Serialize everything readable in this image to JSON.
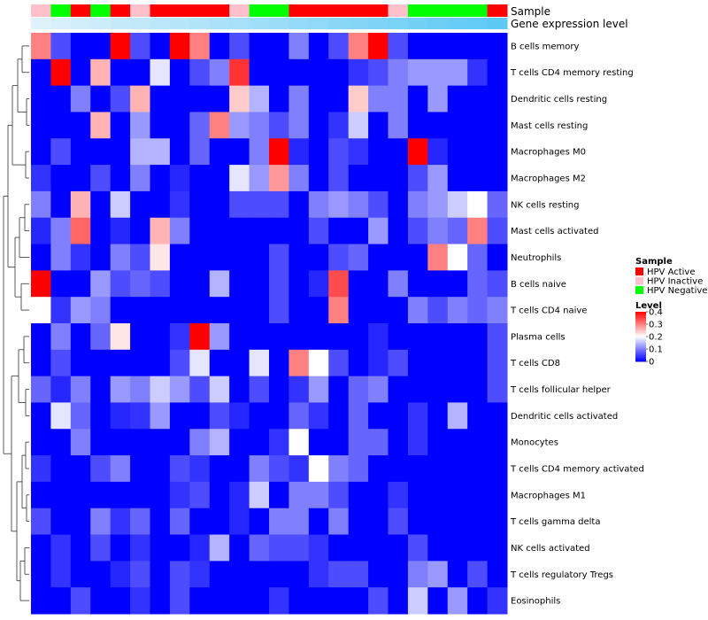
{
  "chart_data": {
    "type": "heatmap",
    "title": "",
    "annotation_labels": {
      "sample": "Sample",
      "gene_expression": "Gene expression level"
    },
    "row_labels": [
      "B cells memory",
      "T cells CD4 memory resting",
      "Dendritic cells resting",
      "Mast cells resting",
      "Macrophages M0",
      "Macrophages M2",
      "NK cells resting",
      "Mast cells activated",
      "Neutrophils",
      "B cells naive",
      "T cells CD4 naive",
      "Plasma cells",
      "T cells CD8",
      "T cells follicular helper",
      "Dendritic cells activated",
      "Monocytes",
      "T cells CD4 memory activated",
      "Macrophages M1",
      "T cells gamma delta",
      "NK cells activated",
      "T cells regulatory  Tregs",
      "Eosinophils"
    ],
    "sample_annotation": [
      "HPV Inactive",
      "HPV Negative",
      "HPV Active",
      "HPV Negative",
      "HPV Active",
      "HPV Inactive",
      "HPV Active",
      "HPV Active",
      "HPV Active",
      "HPV Active",
      "HPV Inactive",
      "HPV Negative",
      "HPV Negative",
      "HPV Active",
      "HPV Active",
      "HPV Active",
      "HPV Active",
      "HPV Active",
      "HPV Inactive",
      "HPV Negative",
      "HPV Negative",
      "HPV Negative",
      "HPV Negative",
      "HPV Active"
    ],
    "expression_annotation": [
      0.05,
      0.1,
      0.14,
      0.18,
      0.22,
      0.26,
      0.3,
      0.34,
      0.38,
      0.42,
      0.46,
      0.5,
      0.54,
      0.58,
      0.62,
      0.66,
      0.7,
      0.74,
      0.78,
      0.82,
      0.86,
      0.9,
      0.94,
      0.98
    ],
    "values": [
      [
        0.3,
        0.06,
        0.0,
        0.0,
        0.4,
        0.06,
        0.0,
        0.4,
        0.3,
        0.0,
        0.06,
        0.0,
        0.0,
        0.1,
        0.0,
        0.06,
        0.3,
        0.4,
        0.06,
        0.0,
        0.0,
        0.0,
        0.0,
        0.0
      ],
      [
        0.0,
        0.4,
        0.0,
        0.26,
        0.0,
        0.0,
        0.18,
        0.0,
        0.06,
        0.1,
        0.36,
        0.0,
        0.0,
        0.0,
        0.0,
        0.0,
        0.04,
        0.06,
        0.1,
        0.12,
        0.12,
        0.12,
        0.04,
        0.0
      ],
      [
        0.0,
        0.0,
        0.1,
        0.0,
        0.06,
        0.26,
        0.0,
        0.0,
        0.0,
        0.0,
        0.24,
        0.14,
        0.0,
        0.1,
        0.0,
        0.0,
        0.24,
        0.1,
        0.1,
        0.0,
        0.12,
        0.0,
        0.0,
        0.0
      ],
      [
        0.0,
        0.0,
        0.0,
        0.26,
        0.0,
        0.12,
        0.0,
        0.0,
        0.08,
        0.3,
        0.12,
        0.1,
        0.06,
        0.1,
        0.0,
        0.04,
        0.16,
        0.0,
        0.1,
        0.0,
        0.0,
        0.0,
        0.0,
        0.0
      ],
      [
        0.0,
        0.06,
        0.0,
        0.0,
        0.0,
        0.14,
        0.14,
        0.0,
        0.08,
        0.0,
        0.0,
        0.1,
        0.4,
        0.03,
        0.0,
        0.06,
        0.04,
        0.0,
        0.0,
        0.4,
        0.03,
        0.0,
        0.0,
        0.0
      ],
      [
        0.04,
        0.0,
        0.0,
        0.06,
        0.0,
        0.1,
        0.0,
        0.03,
        0.0,
        0.0,
        0.18,
        0.12,
        0.28,
        0.1,
        0.0,
        0.06,
        0.0,
        0.0,
        0.0,
        0.06,
        0.12,
        0.0,
        0.0,
        0.0
      ],
      [
        0.1,
        0.0,
        0.26,
        0.0,
        0.16,
        0.0,
        0.0,
        0.04,
        0.0,
        0.0,
        0.06,
        0.06,
        0.06,
        0.0,
        0.1,
        0.12,
        0.1,
        0.06,
        0.0,
        0.1,
        0.12,
        0.16,
        0.2,
        0.08
      ],
      [
        0.03,
        0.1,
        0.32,
        0.0,
        0.03,
        0.0,
        0.26,
        0.1,
        0.0,
        0.0,
        0.0,
        0.0,
        0.0,
        0.0,
        0.06,
        0.0,
        0.0,
        0.12,
        0.0,
        0.06,
        0.1,
        0.08,
        0.3,
        0.06
      ],
      [
        0.0,
        0.1,
        0.04,
        0.0,
        0.1,
        0.06,
        0.22,
        0.0,
        0.0,
        0.0,
        0.0,
        0.0,
        0.06,
        0.0,
        0.0,
        0.06,
        0.08,
        0.0,
        0.0,
        0.0,
        0.3,
        0.2,
        0.08,
        0.0
      ],
      [
        0.4,
        0.0,
        0.0,
        0.12,
        0.06,
        0.08,
        0.06,
        0.0,
        0.0,
        0.14,
        0.0,
        0.0,
        0.06,
        0.0,
        0.03,
        0.34,
        0.0,
        0.0,
        0.1,
        0.0,
        0.0,
        0.0,
        0.08,
        0.06
      ],
      [
        0.2,
        0.04,
        0.12,
        0.1,
        0.0,
        0.0,
        0.0,
        0.0,
        0.0,
        0.0,
        0.0,
        0.0,
        0.06,
        0.0,
        0.0,
        0.3,
        0.0,
        0.0,
        0.0,
        0.1,
        0.06,
        0.1,
        0.08,
        0.1
      ],
      [
        0.0,
        0.1,
        0.0,
        0.08,
        0.22,
        0.0,
        0.0,
        0.04,
        0.4,
        0.12,
        0.0,
        0.0,
        0.0,
        0.0,
        0.0,
        0.0,
        0.0,
        0.03,
        0.0,
        0.0,
        0.0,
        0.0,
        0.0,
        0.06
      ],
      [
        0.0,
        0.06,
        0.0,
        0.0,
        0.0,
        0.0,
        0.0,
        0.06,
        0.18,
        0.0,
        0.0,
        0.18,
        0.0,
        0.3,
        0.2,
        0.06,
        0.0,
        0.03,
        0.06,
        0.0,
        0.0,
        0.0,
        0.0,
        0.06
      ],
      [
        0.08,
        0.03,
        0.1,
        0.0,
        0.12,
        0.1,
        0.16,
        0.12,
        0.06,
        0.16,
        0.0,
        0.06,
        0.0,
        0.04,
        0.12,
        0.0,
        0.08,
        0.1,
        0.0,
        0.0,
        0.0,
        0.0,
        0.0,
        0.06
      ],
      [
        0.0,
        0.18,
        0.08,
        0.0,
        0.03,
        0.04,
        0.12,
        0.0,
        0.0,
        0.06,
        0.03,
        0.0,
        0.0,
        0.08,
        0.04,
        0.0,
        0.08,
        0.0,
        0.0,
        0.04,
        0.0,
        0.14,
        0.0,
        0.0
      ],
      [
        0.0,
        0.0,
        0.1,
        0.0,
        0.0,
        0.0,
        0.0,
        0.0,
        0.1,
        0.14,
        0.0,
        0.0,
        0.04,
        0.2,
        0.0,
        0.0,
        0.08,
        0.08,
        0.0,
        0.04,
        0.0,
        0.0,
        0.0,
        0.0
      ],
      [
        0.04,
        0.0,
        0.0,
        0.06,
        0.1,
        0.0,
        0.0,
        0.06,
        0.04,
        0.0,
        0.0,
        0.1,
        0.06,
        0.04,
        0.2,
        0.1,
        0.08,
        0.0,
        0.0,
        0.0,
        0.0,
        0.0,
        0.0,
        0.0
      ],
      [
        0.0,
        0.0,
        0.0,
        0.0,
        0.0,
        0.0,
        0.0,
        0.04,
        0.06,
        0.0,
        0.03,
        0.16,
        0.0,
        0.1,
        0.1,
        0.06,
        0.0,
        0.0,
        0.04,
        0.0,
        0.0,
        0.0,
        0.0,
        0.0
      ],
      [
        0.06,
        0.0,
        0.0,
        0.1,
        0.04,
        0.08,
        0.0,
        0.08,
        0.0,
        0.0,
        0.03,
        0.0,
        0.1,
        0.1,
        0.0,
        0.1,
        0.0,
        0.0,
        0.06,
        0.0,
        0.0,
        0.0,
        0.0,
        0.0
      ],
      [
        0.0,
        0.04,
        0.0,
        0.06,
        0.0,
        0.04,
        0.0,
        0.0,
        0.03,
        0.14,
        0.0,
        0.08,
        0.06,
        0.06,
        0.04,
        0.0,
        0.0,
        0.0,
        0.0,
        0.06,
        0.0,
        0.0,
        0.0,
        0.0
      ],
      [
        0.0,
        0.04,
        0.0,
        0.0,
        0.03,
        0.06,
        0.0,
        0.06,
        0.04,
        0.0,
        0.0,
        0.0,
        0.0,
        0.0,
        0.04,
        0.06,
        0.06,
        0.0,
        0.0,
        0.1,
        0.12,
        0.0,
        0.06,
        0.0
      ],
      [
        0.0,
        0.0,
        0.06,
        0.0,
        0.0,
        0.04,
        0.0,
        0.06,
        0.0,
        0.0,
        0.0,
        0.0,
        0.04,
        0.0,
        0.0,
        0.0,
        0.0,
        0.06,
        0.0,
        0.16,
        0.0,
        0.12,
        0.0,
        0.04
      ]
    ],
    "color_scale": {
      "low": "#0000ff",
      "mid": "#ffffff",
      "high": "#ff0000",
      "min": 0,
      "mid_value": 0.2,
      "max": 0.4
    },
    "expression_colors": {
      "low": "#e6f4fc",
      "high": "#5bc8f5"
    },
    "legends": {
      "sample": {
        "title": "Sample",
        "entries": [
          {
            "label": "HPV Active",
            "color": "#ff0000"
          },
          {
            "label": "HPV Inactive",
            "color": "#ffc0cb"
          },
          {
            "label": "HPV Negative",
            "color": "#00ff00"
          }
        ]
      },
      "level": {
        "title": "Level",
        "ticks": [
          "0.4",
          "0.3",
          "0.2",
          "0.1",
          "0"
        ],
        "tick_values": [
          0.4,
          0.3,
          0.2,
          0.1,
          0
        ]
      }
    },
    "dendrogram": "rows clustered (tree on left); columns unclustered"
  }
}
